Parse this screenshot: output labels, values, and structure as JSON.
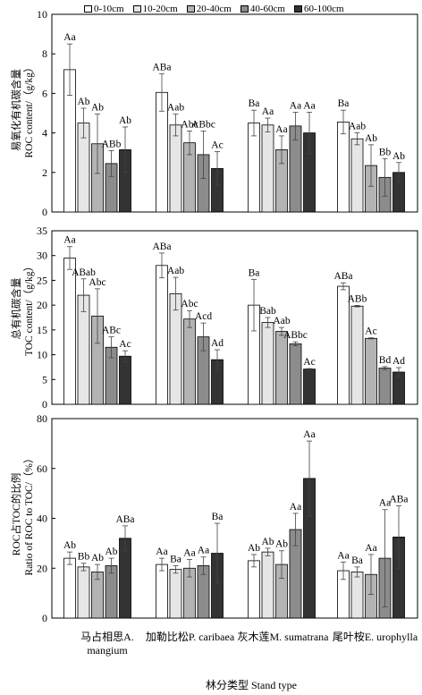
{
  "colors": [
    "#ffffff",
    "#e6e6e6",
    "#b3b3b3",
    "#8c8c8c",
    "#333333"
  ],
  "legend": [
    "0-10cm",
    "10-20cm",
    "20-40cm",
    "40-60cm",
    "60-100cm"
  ],
  "x_title": "林分类型 Stand type",
  "categories": [
    "马占相思A. mangium",
    "加勒比松P. caribaea",
    "灰木莲M. sumatrana",
    "尾叶桉E. urophylla"
  ],
  "categories_lines": [
    [
      "马占相思A.",
      "mangium"
    ],
    [
      "加勒比松P. caribaea"
    ],
    [
      "灰木莲M. sumatrana"
    ],
    [
      "尾叶桉E. urophylla"
    ]
  ],
  "chart_data": [
    {
      "type": "bar",
      "ylabel_zh": "易氧化有机碳含量",
      "ylabel_en": "ROC content/（g/kg）",
      "ylim": [
        0,
        10
      ],
      "yticks": [
        0,
        2,
        4,
        6,
        8,
        10
      ],
      "categories": [
        "马占相思A. mangium",
        "加勒比松P. caribaea",
        "灰木莲M. sumatrana",
        "尾叶桉E. urophylla"
      ],
      "series": [
        {
          "name": "0-10cm",
          "values": [
            7.2,
            6.05,
            4.5,
            4.55
          ],
          "errors": [
            1.3,
            0.95,
            0.65,
            0.6
          ],
          "labels": [
            "Aa",
            "ABa",
            "Ba",
            "Ba"
          ]
        },
        {
          "name": "10-20cm",
          "values": [
            4.5,
            4.4,
            4.4,
            3.7
          ],
          "errors": [
            0.75,
            0.55,
            0.35,
            0.3
          ],
          "labels": [
            "Ab",
            "Aab",
            "Aa",
            "Aab"
          ]
        },
        {
          "name": "20-40cm",
          "values": [
            3.45,
            3.5,
            3.15,
            2.35
          ],
          "errors": [
            1.5,
            0.6,
            0.7,
            1.05
          ],
          "labels": [
            "Ab",
            "Abc",
            "Aa",
            "Ab"
          ]
        },
        {
          "name": "40-60cm",
          "values": [
            2.45,
            2.9,
            4.35,
            1.75
          ],
          "errors": [
            0.65,
            1.2,
            0.7,
            0.95
          ],
          "labels": [
            "ABb",
            "ABbc",
            "Aa",
            "Bb"
          ]
        },
        {
          "name": "60-100cm",
          "values": [
            3.15,
            2.2,
            4.0,
            2.0
          ],
          "errors": [
            1.15,
            0.85,
            1.05,
            0.5
          ],
          "labels": [
            "Ab",
            "Ac",
            "Aa",
            "Ab"
          ]
        }
      ]
    },
    {
      "type": "bar",
      "ylabel_zh": "总有机碳含量",
      "ylabel_en": "TOC content/（g/kg）",
      "ylim": [
        0,
        35
      ],
      "yticks": [
        0,
        5,
        10,
        15,
        20,
        25,
        30,
        35
      ],
      "categories": [
        "马占相思A. mangium",
        "加勒比松P. caribaea",
        "灰木莲M. sumatrana",
        "尾叶桉E. urophylla"
      ],
      "series": [
        {
          "name": "0-10cm",
          "values": [
            29.5,
            28.0,
            20.0,
            23.8
          ],
          "errors": [
            2.3,
            2.5,
            5.2,
            0.7
          ],
          "labels": [
            "Aa",
            "ABa",
            "Ba",
            "ABa"
          ]
        },
        {
          "name": "10-20cm",
          "values": [
            22.0,
            22.3,
            16.5,
            19.8
          ],
          "errors": [
            3.3,
            3.3,
            1.0,
            0.15
          ],
          "labels": [
            "ABab",
            "Aab",
            "Bab",
            "ABb"
          ]
        },
        {
          "name": "20-40cm",
          "values": [
            17.8,
            17.2,
            14.7,
            13.3
          ],
          "errors": [
            5.5,
            1.7,
            0.8,
            0.1
          ],
          "labels": [
            "Abc",
            "Abc",
            "Aab",
            "Ac"
          ]
        },
        {
          "name": "40-60cm",
          "values": [
            11.5,
            13.6,
            12.2,
            7.3
          ],
          "errors": [
            2.1,
            2.8,
            0.4,
            0.3
          ],
          "labels": [
            "ABc",
            "Acd",
            "ABbc",
            "Bd"
          ]
        },
        {
          "name": "60-100cm",
          "values": [
            9.7,
            9.0,
            7.1,
            6.5
          ],
          "errors": [
            1.1,
            2.0,
            0.1,
            0.9
          ],
          "labels": [
            "Ac",
            "Ad",
            "Ac",
            "Ad"
          ]
        }
      ]
    },
    {
      "type": "bar",
      "ylabel_zh": "ROC占TOC的比例",
      "ylabel_en": "Ratio of ROC to TOC/（%）",
      "ylim": [
        0,
        80
      ],
      "yticks": [
        0,
        20,
        40,
        60,
        80
      ],
      "categories": [
        "马占相思A. mangium",
        "加勒比松P. caribaea",
        "灰木莲M. sumatrana",
        "尾叶桉E. urophylla"
      ],
      "series": [
        {
          "name": "0-10cm",
          "values": [
            24.0,
            21.5,
            23.0,
            19.0
          ],
          "errors": [
            2.5,
            2.5,
            2.5,
            3.5
          ],
          "labels": [
            "Ab",
            "Aa",
            "Ab",
            "Aa"
          ]
        },
        {
          "name": "10-20cm",
          "values": [
            20.5,
            19.5,
            26.5,
            18.5
          ],
          "errors": [
            1.5,
            1.5,
            1.5,
            2.0
          ],
          "labels": [
            "Bb",
            "Ba",
            "Ab",
            "Ba"
          ]
        },
        {
          "name": "20-40cm",
          "values": [
            18.5,
            20.0,
            21.5,
            17.5
          ],
          "errors": [
            3.0,
            3.5,
            5.5,
            8.0
          ],
          "labels": [
            "Ab",
            "Aa",
            "Ab",
            "Aa"
          ]
        },
        {
          "name": "40-60cm",
          "values": [
            21.0,
            21.0,
            35.5,
            24.0
          ],
          "errors": [
            3.0,
            3.5,
            6.5,
            19.5
          ],
          "labels": [
            "Ab",
            "Aa",
            "Aa",
            "Aa"
          ]
        },
        {
          "name": "60-100cm",
          "values": [
            32.0,
            26.0,
            56.0,
            32.5
          ],
          "errors": [
            5.0,
            12.0,
            15.0,
            12.5
          ],
          "labels": [
            "ABa",
            "Ba",
            "Aa",
            "ABa"
          ]
        }
      ]
    }
  ]
}
